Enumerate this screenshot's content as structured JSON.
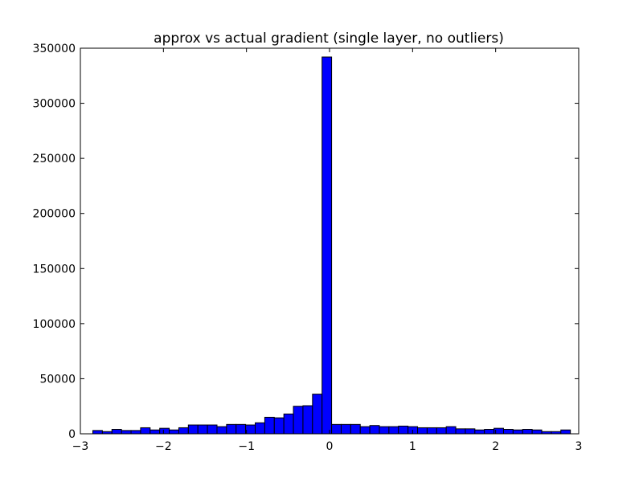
{
  "chart_data": {
    "type": "bar",
    "title": "approx vs actual gradient (single layer, no outliers)",
    "xlabel": "",
    "ylabel": "",
    "xlim": [
      -3,
      3
    ],
    "ylim": [
      0,
      350000
    ],
    "grid": false,
    "bar_color": "#0000ff",
    "edge_color": "#000000",
    "x_ticks": [
      {
        "value": -3,
        "label": "−3"
      },
      {
        "value": -2,
        "label": "−2"
      },
      {
        "value": -1,
        "label": "−1"
      },
      {
        "value": 0,
        "label": "0"
      },
      {
        "value": 1,
        "label": "1"
      },
      {
        "value": 2,
        "label": "2"
      },
      {
        "value": 3,
        "label": "3"
      }
    ],
    "y_ticks": [
      {
        "value": 0,
        "label": "0"
      },
      {
        "value": 50000,
        "label": "50000"
      },
      {
        "value": 100000,
        "label": "100000"
      },
      {
        "value": 150000,
        "label": "150000"
      },
      {
        "value": 200000,
        "label": "200000"
      },
      {
        "value": 250000,
        "label": "250000"
      },
      {
        "value": 300000,
        "label": "300000"
      },
      {
        "value": 350000,
        "label": "350000"
      }
    ],
    "bins": [
      {
        "x0": -2.85,
        "x1": -2.735,
        "value": 3000
      },
      {
        "x0": -2.735,
        "x1": -2.62,
        "value": 2000
      },
      {
        "x0": -2.62,
        "x1": -2.505,
        "value": 4000
      },
      {
        "x0": -2.505,
        "x1": -2.39,
        "value": 3000
      },
      {
        "x0": -2.39,
        "x1": -2.275,
        "value": 3000
      },
      {
        "x0": -2.275,
        "x1": -2.16,
        "value": 5500
      },
      {
        "x0": -2.16,
        "x1": -2.045,
        "value": 3500
      },
      {
        "x0": -2.045,
        "x1": -1.93,
        "value": 5000
      },
      {
        "x0": -1.93,
        "x1": -1.815,
        "value": 3500
      },
      {
        "x0": -1.815,
        "x1": -1.7,
        "value": 5500
      },
      {
        "x0": -1.7,
        "x1": -1.585,
        "value": 8000
      },
      {
        "x0": -1.585,
        "x1": -1.47,
        "value": 8000
      },
      {
        "x0": -1.47,
        "x1": -1.355,
        "value": 8000
      },
      {
        "x0": -1.355,
        "x1": -1.24,
        "value": 6500
      },
      {
        "x0": -1.24,
        "x1": -1.125,
        "value": 8500
      },
      {
        "x0": -1.125,
        "x1": -1.01,
        "value": 8500
      },
      {
        "x0": -1.01,
        "x1": -0.895,
        "value": 8000
      },
      {
        "x0": -0.895,
        "x1": -0.78,
        "value": 10000
      },
      {
        "x0": -0.78,
        "x1": -0.665,
        "value": 15000
      },
      {
        "x0": -0.665,
        "x1": -0.55,
        "value": 14500
      },
      {
        "x0": -0.55,
        "x1": -0.435,
        "value": 18000
      },
      {
        "x0": -0.435,
        "x1": -0.32,
        "value": 25000
      },
      {
        "x0": -0.32,
        "x1": -0.205,
        "value": 25500
      },
      {
        "x0": -0.205,
        "x1": -0.09,
        "value": 36000
      },
      {
        "x0": -0.09,
        "x1": 0.025,
        "value": 342000
      },
      {
        "x0": 0.025,
        "x1": 0.14,
        "value": 8500
      },
      {
        "x0": 0.14,
        "x1": 0.255,
        "value": 8500
      },
      {
        "x0": 0.255,
        "x1": 0.37,
        "value": 8500
      },
      {
        "x0": 0.37,
        "x1": 0.485,
        "value": 6500
      },
      {
        "x0": 0.485,
        "x1": 0.6,
        "value": 7500
      },
      {
        "x0": 0.6,
        "x1": 0.715,
        "value": 6500
      },
      {
        "x0": 0.715,
        "x1": 0.83,
        "value": 6500
      },
      {
        "x0": 0.83,
        "x1": 0.945,
        "value": 7000
      },
      {
        "x0": 0.945,
        "x1": 1.06,
        "value": 6500
      },
      {
        "x0": 1.06,
        "x1": 1.175,
        "value": 5500
      },
      {
        "x0": 1.175,
        "x1": 1.29,
        "value": 5500
      },
      {
        "x0": 1.29,
        "x1": 1.405,
        "value": 5500
      },
      {
        "x0": 1.405,
        "x1": 1.52,
        "value": 6500
      },
      {
        "x0": 1.52,
        "x1": 1.635,
        "value": 4500
      },
      {
        "x0": 1.635,
        "x1": 1.75,
        "value": 4500
      },
      {
        "x0": 1.75,
        "x1": 1.865,
        "value": 3500
      },
      {
        "x0": 1.865,
        "x1": 1.98,
        "value": 4000
      },
      {
        "x0": 1.98,
        "x1": 2.095,
        "value": 5000
      },
      {
        "x0": 2.095,
        "x1": 2.21,
        "value": 4000
      },
      {
        "x0": 2.21,
        "x1": 2.325,
        "value": 3500
      },
      {
        "x0": 2.325,
        "x1": 2.44,
        "value": 4000
      },
      {
        "x0": 2.44,
        "x1": 2.555,
        "value": 3500
      },
      {
        "x0": 2.555,
        "x1": 2.67,
        "value": 2000
      },
      {
        "x0": 2.67,
        "x1": 2.785,
        "value": 2000
      },
      {
        "x0": 2.785,
        "x1": 2.9,
        "value": 3500
      }
    ]
  }
}
